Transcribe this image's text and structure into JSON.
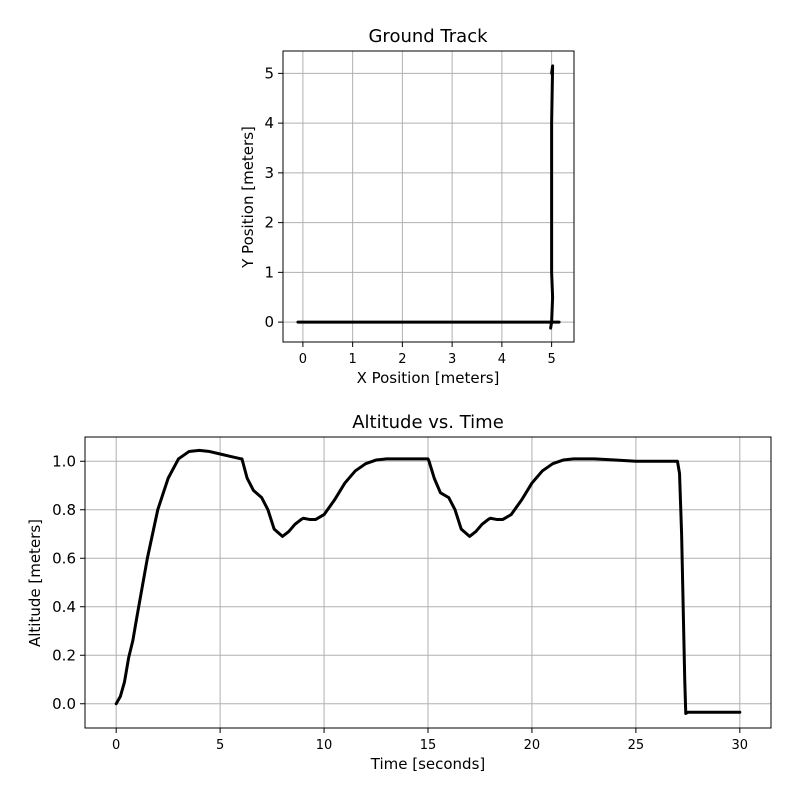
{
  "chart_data": [
    {
      "type": "line",
      "title": "Ground Track",
      "xlabel": "X Position [meters]",
      "ylabel": "Y Position [meters]",
      "xlim": [
        -0.4,
        5.45
      ],
      "ylim": [
        -0.4,
        5.45
      ],
      "xticks": [
        "0",
        "1",
        "2",
        "3",
        "4",
        "5"
      ],
      "yticks": [
        "0",
        "1",
        "2",
        "3",
        "4",
        "5"
      ],
      "grid": true,
      "color": "#000000",
      "series": [
        {
          "x": [
            -0.1,
            0.0,
            1.0,
            2.0,
            3.0,
            4.0,
            4.97,
            5.0,
            5.15,
            5.0,
            4.98,
            5.0,
            5.02,
            5.0,
            5.0,
            5.0,
            5.02,
            5.0
          ],
          "y": [
            0.0,
            0.0,
            0.0,
            0.0,
            0.0,
            0.0,
            0.0,
            0.0,
            0.0,
            0.0,
            -0.12,
            0.0,
            0.5,
            1.0,
            2.5,
            4.0,
            5.15,
            5.0
          ]
        }
      ]
    },
    {
      "type": "line",
      "title": "Altitude vs. Time",
      "xlabel": "Time [seconds]",
      "ylabel": "Altitude [meters]",
      "xlim": [
        -1.5,
        31.5
      ],
      "ylim": [
        -0.1,
        1.1
      ],
      "xticks": [
        "0",
        "5",
        "10",
        "15",
        "20",
        "25",
        "30"
      ],
      "yticks": [
        "0.0",
        "0.2",
        "0.4",
        "0.6",
        "0.8",
        "1.0"
      ],
      "grid": true,
      "color": "#000000",
      "series": [
        {
          "x": [
            0,
            0.2,
            0.4,
            0.6,
            0.8,
            1.0,
            1.5,
            2.0,
            2.5,
            3.0,
            3.5,
            4.0,
            4.5,
            5.0,
            5.5,
            6.0,
            6.05,
            6.3,
            6.6,
            7.0,
            7.3,
            7.6,
            8.0,
            8.3,
            8.6,
            8.9,
            9.0,
            9.3,
            9.6,
            10.0,
            10.5,
            11.0,
            11.5,
            12.0,
            12.5,
            13.0,
            13.5,
            14.0,
            14.5,
            15.0,
            15.05,
            15.3,
            15.6,
            16.0,
            16.3,
            16.6,
            17.0,
            17.3,
            17.6,
            17.9,
            18.0,
            18.3,
            18.6,
            19.0,
            19.5,
            20.0,
            20.5,
            21.0,
            21.5,
            22.0,
            22.5,
            23.0,
            24.0,
            25.0,
            26.0,
            27.0,
            27.1,
            27.2,
            27.3,
            27.35,
            27.4,
            27.5,
            28.0,
            29.0,
            30.0
          ],
          "y": [
            0.0,
            0.03,
            0.09,
            0.19,
            0.26,
            0.36,
            0.6,
            0.8,
            0.93,
            1.01,
            1.04,
            1.045,
            1.04,
            1.03,
            1.02,
            1.01,
            1.01,
            0.93,
            0.88,
            0.85,
            0.8,
            0.72,
            0.69,
            0.71,
            0.74,
            0.76,
            0.765,
            0.76,
            0.76,
            0.78,
            0.84,
            0.91,
            0.96,
            0.99,
            1.005,
            1.01,
            1.01,
            1.01,
            1.01,
            1.01,
            1.0,
            0.93,
            0.87,
            0.85,
            0.8,
            0.72,
            0.69,
            0.71,
            0.74,
            0.76,
            0.765,
            0.76,
            0.76,
            0.78,
            0.84,
            0.91,
            0.96,
            0.99,
            1.005,
            1.01,
            1.01,
            1.01,
            1.005,
            1.0,
            1.0,
            1.0,
            0.95,
            0.7,
            0.3,
            0.1,
            -0.04,
            -0.035,
            -0.035,
            -0.035,
            -0.035
          ]
        }
      ]
    }
  ]
}
